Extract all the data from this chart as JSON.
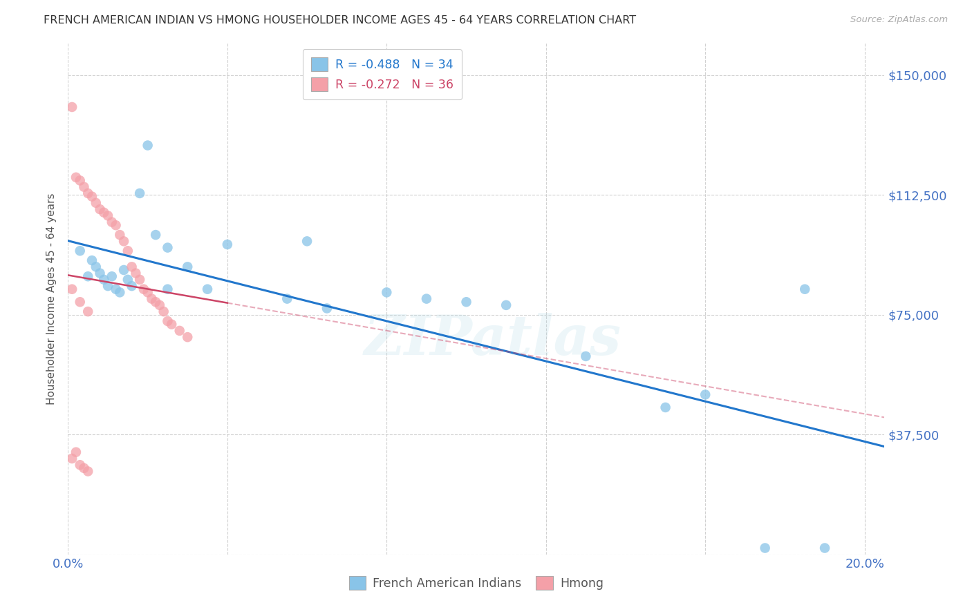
{
  "title": "FRENCH AMERICAN INDIAN VS HMONG HOUSEHOLDER INCOME AGES 45 - 64 YEARS CORRELATION CHART",
  "source": "Source: ZipAtlas.com",
  "ylabel": "Householder Income Ages 45 - 64 years",
  "watermark": "ZIPatlas",
  "blue_label": "French American Indians",
  "pink_label": "Hmong",
  "blue_R": "-0.488",
  "blue_N": "34",
  "pink_R": "-0.272",
  "pink_N": "36",
  "xlim": [
    0.0,
    0.205
  ],
  "ylim": [
    0,
    160000
  ],
  "yticks": [
    0,
    37500,
    75000,
    112500,
    150000
  ],
  "ytick_labels": [
    "",
    "$37,500",
    "$75,000",
    "$112,500",
    "$150,000"
  ],
  "xticks": [
    0.0,
    0.04,
    0.08,
    0.12,
    0.16,
    0.2
  ],
  "xtick_labels": [
    "0.0%",
    "",
    "",
    "",
    "",
    "20.0%"
  ],
  "blue_x": [
    0.003,
    0.005,
    0.006,
    0.007,
    0.008,
    0.009,
    0.01,
    0.011,
    0.012,
    0.013,
    0.014,
    0.015,
    0.016,
    0.018,
    0.02,
    0.022,
    0.025,
    0.03,
    0.04,
    0.06,
    0.08,
    0.09,
    0.1,
    0.11,
    0.13,
    0.15,
    0.16,
    0.175,
    0.185,
    0.19,
    0.025,
    0.035,
    0.055,
    0.065
  ],
  "blue_y": [
    95000,
    87000,
    92000,
    90000,
    88000,
    86000,
    84000,
    87000,
    83000,
    82000,
    89000,
    86000,
    84000,
    113000,
    128000,
    100000,
    96000,
    90000,
    97000,
    98000,
    82000,
    80000,
    79000,
    78000,
    62000,
    46000,
    50000,
    2000,
    83000,
    2000,
    83000,
    83000,
    80000,
    77000
  ],
  "pink_x": [
    0.001,
    0.002,
    0.003,
    0.004,
    0.005,
    0.006,
    0.007,
    0.008,
    0.009,
    0.01,
    0.011,
    0.012,
    0.013,
    0.014,
    0.015,
    0.016,
    0.017,
    0.018,
    0.019,
    0.02,
    0.021,
    0.022,
    0.023,
    0.024,
    0.025,
    0.026,
    0.028,
    0.03,
    0.001,
    0.002,
    0.003,
    0.004,
    0.005,
    0.001,
    0.003,
    0.005
  ],
  "pink_y": [
    140000,
    118000,
    117000,
    115000,
    113000,
    112000,
    110000,
    108000,
    107000,
    106000,
    104000,
    103000,
    100000,
    98000,
    95000,
    90000,
    88000,
    86000,
    83000,
    82000,
    80000,
    79000,
    78000,
    76000,
    73000,
    72000,
    70000,
    68000,
    30000,
    32000,
    28000,
    27000,
    26000,
    83000,
    79000,
    76000
  ],
  "bg_color": "#ffffff",
  "blue_color": "#89c4e8",
  "pink_color": "#f4a0a8",
  "blue_line_color": "#2277cc",
  "pink_line_color": "#cc4466",
  "grid_color": "#cccccc",
  "axis_color": "#4472c4",
  "title_color": "#333333"
}
